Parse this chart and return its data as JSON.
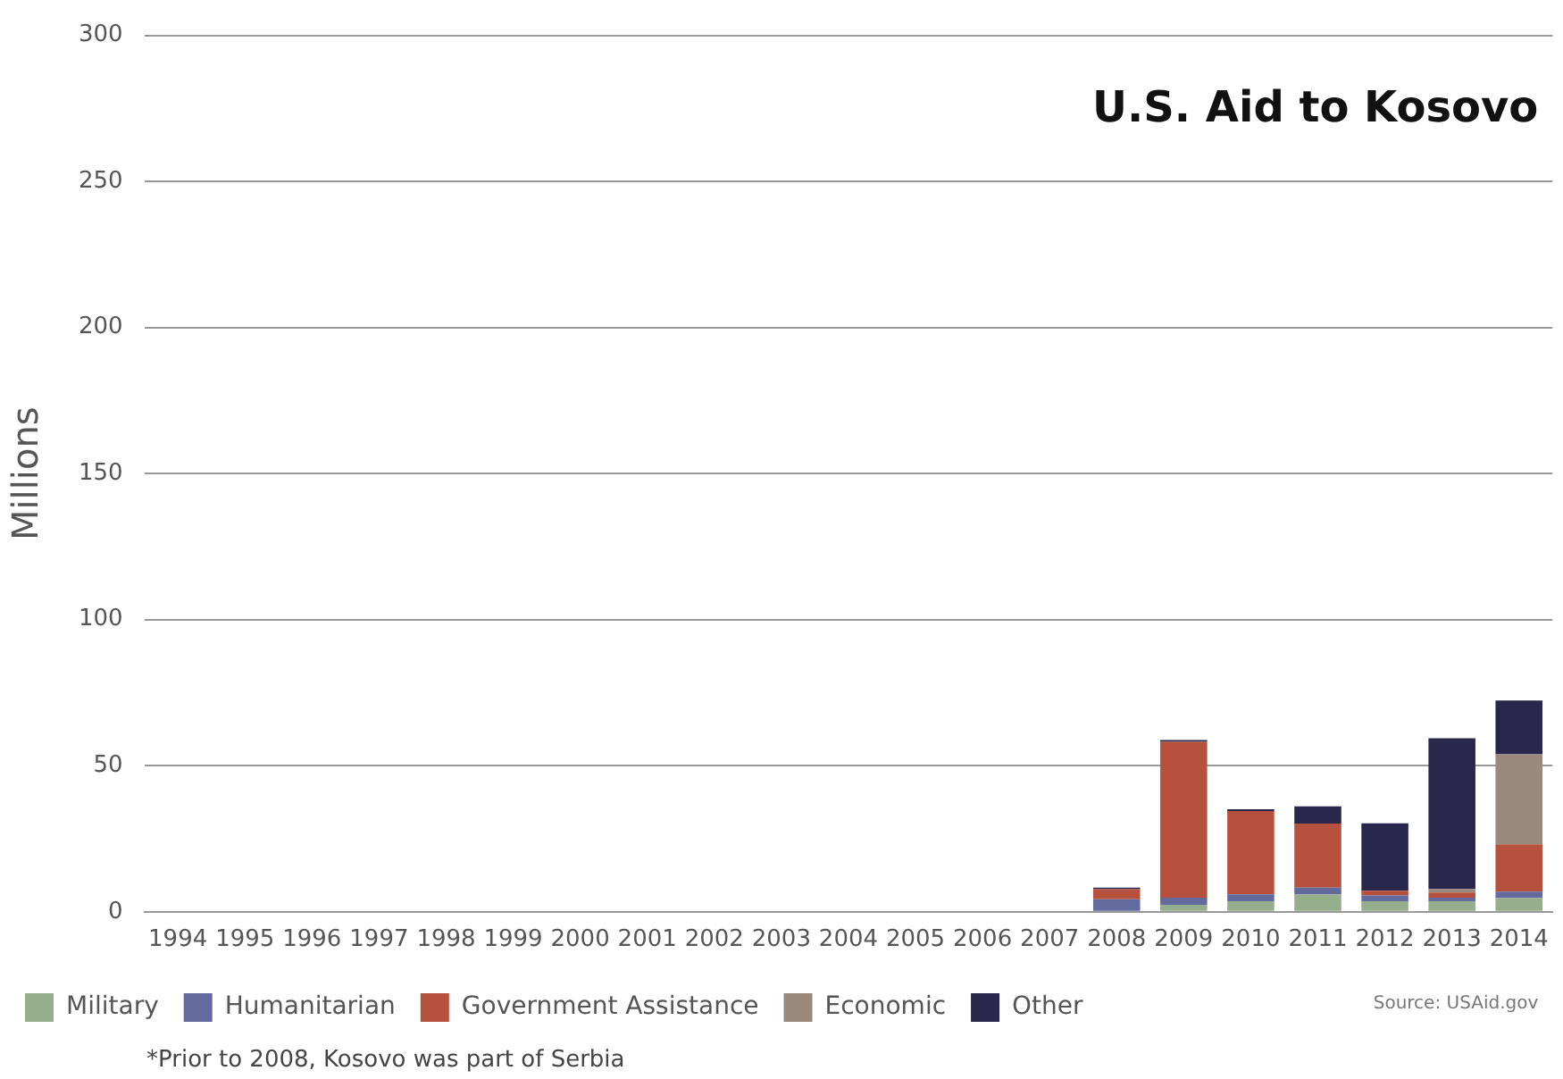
{
  "chart_data": {
    "type": "bar",
    "title": "U.S. Aid to Kosovo",
    "ylabel": "Millions",
    "categories": [
      "1994",
      "1995",
      "1996",
      "1997",
      "1998",
      "1999",
      "2000",
      "2001",
      "2002",
      "2003",
      "2004",
      "2005",
      "2006",
      "2007",
      "2008",
      "2009",
      "2010",
      "2011",
      "2012",
      "2013",
      "2014"
    ],
    "stacked": true,
    "series": [
      {
        "name": "Military",
        "color": "#95ae8c",
        "values": [
          0,
          0,
          0,
          0,
          0,
          0,
          0,
          0,
          0,
          0,
          0,
          0,
          0,
          0,
          0,
          2.4,
          3.6,
          5.9,
          3.6,
          3.6,
          4.7
        ]
      },
      {
        "name": "Humanitarian",
        "color": "#636a9d",
        "values": [
          0,
          0,
          0,
          0,
          0,
          0,
          0,
          0,
          0,
          0,
          0,
          0,
          0,
          0,
          4.3,
          2.4,
          2.4,
          2.4,
          2.0,
          1.2,
          2.2
        ]
      },
      {
        "name": "Government Assistance",
        "color": "#b5513d",
        "values": [
          0,
          0,
          0,
          0,
          0,
          0,
          0,
          0,
          0,
          0,
          0,
          0,
          0,
          0,
          3.4,
          53.4,
          28.5,
          21.9,
          1.6,
          1.8,
          16.2
        ]
      },
      {
        "name": "Economic",
        "color": "#9b897b",
        "values": [
          0,
          0,
          0,
          0,
          0,
          0,
          0,
          0,
          0,
          0,
          0,
          0,
          0,
          0,
          0,
          0,
          0,
          0,
          0,
          1.2,
          30.8
        ]
      },
      {
        "name": "Other",
        "color": "#29274b",
        "values": [
          0,
          0,
          0,
          0,
          0,
          0,
          0,
          0,
          0,
          0,
          0,
          0,
          0,
          0,
          0.6,
          0.6,
          0.6,
          5.9,
          23.1,
          51.6,
          18.4
        ]
      }
    ],
    "ylim": [
      0,
      300
    ],
    "yticks": [
      0,
      50,
      100,
      150,
      200,
      250,
      300
    ],
    "grid": "y",
    "legend": "bottom left",
    "annotations": [
      "Source: USAid.gov",
      "*Prior to 2008, Kosovo was part of Serbia"
    ]
  }
}
